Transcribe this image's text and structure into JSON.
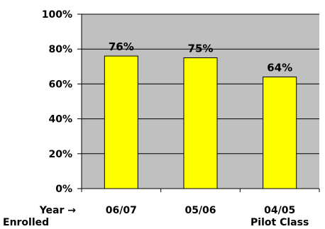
{
  "chart_data": {
    "type": "bar",
    "title": "",
    "xlabel_lines": [
      "Year →",
      "Enrolled"
    ],
    "ylabel": "",
    "categories": [
      [
        "06/07"
      ],
      [
        "05/06"
      ],
      [
        "04/05",
        "Pilot Class"
      ]
    ],
    "series": [
      {
        "values": [
          76,
          75,
          64
        ]
      }
    ],
    "data_labels": [
      "76%",
      "75%",
      "64%"
    ],
    "ylim": [
      0,
      100
    ],
    "y_ticks": [
      0,
      20,
      40,
      60,
      80,
      100
    ],
    "y_tick_labels": [
      "0%",
      "20%",
      "40%",
      "60%",
      "80%",
      "100%"
    ],
    "grid": true,
    "legend": "none",
    "colors": {
      "bar": "#FFFF00",
      "bar_edge": "#000000",
      "plot_background": "#C0C0C0",
      "gridline": "#000000",
      "page_background": "#FFFFFF"
    }
  }
}
